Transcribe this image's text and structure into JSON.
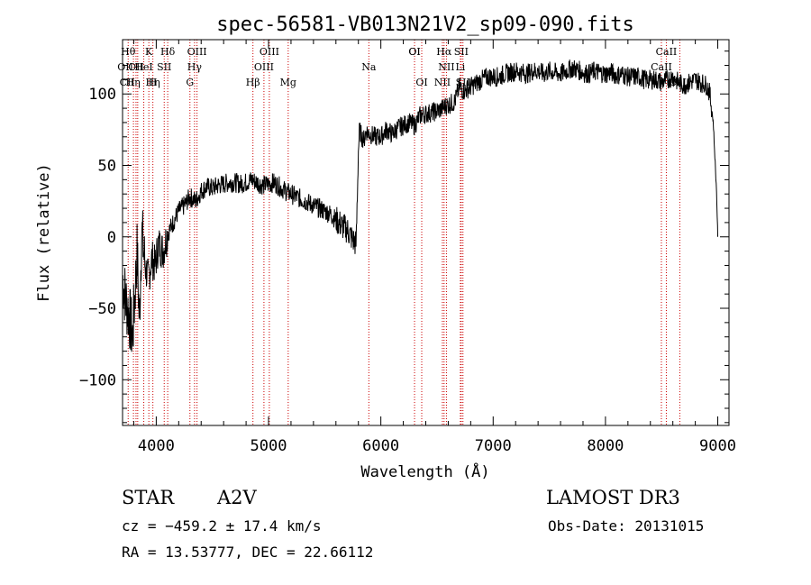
{
  "chart_data": {
    "type": "line",
    "title": "spec-56581-VB013N21V2_sp09-090.fits",
    "xlabel": "Wavelength (Å)",
    "ylabel": "Flux (relative)",
    "xlim": [
      3700,
      9100
    ],
    "ylim": [
      -132,
      138
    ],
    "xticks": [
      4000,
      5000,
      6000,
      7000,
      8000,
      9000
    ],
    "yticks": [
      -100,
      -50,
      0,
      50,
      100
    ],
    "xtick_labels": [
      "4000",
      "5000",
      "6000",
      "7000",
      "8000",
      "9000"
    ],
    "ytick_labels": [
      "−100",
      "−50",
      "0",
      "50",
      "100"
    ],
    "series": [
      {
        "name": "flux",
        "x": [
          3700,
          3730,
          3760,
          3790,
          3810,
          3830,
          3850,
          3870,
          3900,
          3930,
          3960,
          3990,
          4020,
          4060,
          4100,
          4150,
          4200,
          4250,
          4300,
          4350,
          4400,
          4450,
          4500,
          4550,
          4600,
          4650,
          4700,
          4750,
          4800,
          4850,
          4900,
          4950,
          5000,
          5050,
          5100,
          5150,
          5200,
          5250,
          5300,
          5350,
          5400,
          5450,
          5500,
          5550,
          5600,
          5650,
          5700,
          5750,
          5780,
          5800,
          5810,
          5830,
          5850,
          5870,
          5900,
          5950,
          6000,
          6050,
          6100,
          6150,
          6200,
          6250,
          6300,
          6350,
          6400,
          6450,
          6500,
          6550,
          6580,
          6620,
          6660,
          6700,
          6740,
          6780,
          6820,
          6860,
          6900,
          6950,
          7000,
          7050,
          7100,
          7150,
          7200,
          7250,
          7300,
          7350,
          7400,
          7450,
          7500,
          7550,
          7600,
          7650,
          7700,
          7750,
          7800,
          7850,
          7900,
          7950,
          8000,
          8050,
          8100,
          8150,
          8200,
          8250,
          8300,
          8350,
          8400,
          8450,
          8500,
          8550,
          8600,
          8650,
          8700,
          8750,
          8800,
          8850,
          8900,
          8930,
          8960,
          8990,
          9000
        ],
        "y": [
          -28,
          -45,
          -55,
          -70,
          -40,
          -10,
          -60,
          5,
          -20,
          -30,
          -15,
          -20,
          -5,
          -10,
          2,
          10,
          18,
          22,
          28,
          25,
          32,
          35,
          34,
          36,
          37,
          38,
          38,
          37,
          38,
          40,
          38,
          36,
          37,
          38,
          35,
          32,
          30,
          28,
          26,
          24,
          22,
          20,
          18,
          16,
          12,
          8,
          5,
          -2,
          -5,
          60,
          75,
          70,
          68,
          74,
          72,
          70,
          70,
          75,
          72,
          76,
          78,
          80,
          78,
          85,
          86,
          87,
          88,
          90,
          92,
          93,
          95,
          105,
          102,
          104,
          106,
          108,
          110,
          112,
          112,
          112,
          114,
          115,
          116,
          115,
          114,
          116,
          116,
          114,
          116,
          115,
          114,
          116,
          118,
          117,
          115,
          114,
          116,
          115,
          114,
          115,
          113,
          114,
          112,
          112,
          112,
          110,
          110,
          110,
          108,
          110,
          112,
          108,
          106,
          108,
          110,
          108,
          106,
          100,
          80,
          30,
          0
        ]
      }
    ],
    "line_markers": [
      {
        "wl": 3750,
        "label": "Hθ",
        "row": 0
      },
      {
        "wl": 3797,
        "label": "",
        "row": 0
      },
      {
        "wl": 3820,
        "label": "OII",
        "row": 1
      },
      {
        "wl": 3835,
        "label": "",
        "row": 0
      },
      {
        "wl": 3889,
        "label": "HeI",
        "row": 1
      },
      {
        "wl": 3934,
        "label": "K",
        "row": 0
      },
      {
        "wl": 3970,
        "label": "Hη",
        "row": 2
      },
      {
        "wl": 4071,
        "label": "SII",
        "row": 1
      },
      {
        "wl": 4102,
        "label": "Hδ",
        "row": 0
      },
      {
        "wl": 4300,
        "label": "G",
        "row": 2
      },
      {
        "wl": 4341,
        "label": "Hγ",
        "row": 1
      },
      {
        "wl": 4363,
        "label": "OIII",
        "row": 0
      },
      {
        "wl": 4861,
        "label": "Hβ",
        "row": 2
      },
      {
        "wl": 4959,
        "label": "OIII",
        "row": 1
      },
      {
        "wl": 5007,
        "label": "OIII",
        "row": 0
      },
      {
        "wl": 5175,
        "label": "Mg",
        "row": 2
      },
      {
        "wl": 5893,
        "label": "Na",
        "row": 1
      },
      {
        "wl": 6300,
        "label": "OI",
        "row": 0
      },
      {
        "wl": 6364,
        "label": "OI",
        "row": 2
      },
      {
        "wl": 6548,
        "label": "NII",
        "row": 2
      },
      {
        "wl": 6563,
        "label": "Hα",
        "row": 0
      },
      {
        "wl": 6584,
        "label": "NII",
        "row": 1
      },
      {
        "wl": 6708,
        "label": "Li",
        "row": 1
      },
      {
        "wl": 6716,
        "label": "SII",
        "row": 0
      },
      {
        "wl": 6731,
        "label": "SII",
        "row": 2
      },
      {
        "wl": 8498,
        "label": "CaII",
        "row": 1
      },
      {
        "wl": 8542,
        "label": "CaII",
        "row": 0
      },
      {
        "wl": 8662,
        "label": "CaII",
        "row": 2
      }
    ],
    "overlay_labels": [
      {
        "text": "CII",
        "wl": 3742,
        "row": 2
      },
      {
        "text": "OII",
        "wl": 3725,
        "row": 1
      },
      {
        "text": "Hη",
        "wl": 3793,
        "row": 2
      },
      {
        "text": "H",
        "wl": 3969,
        "row": 2
      },
      {
        "text": "OI",
        "wl": 6300,
        "row": 0
      }
    ]
  },
  "info": {
    "object_class": "STAR",
    "subclass": "A2V",
    "survey": "LAMOST DR3",
    "redshift_line": "cz = −459.2 ± 17.4 km/s",
    "coords_line": "RA =  13.53777, DEC =  22.66112",
    "obs_date": "Obs-Date: 20131015"
  },
  "colors": {
    "spectrum": "#000000",
    "marker": "#cc0000",
    "axis": "#000000",
    "background": "#ffffff"
  }
}
